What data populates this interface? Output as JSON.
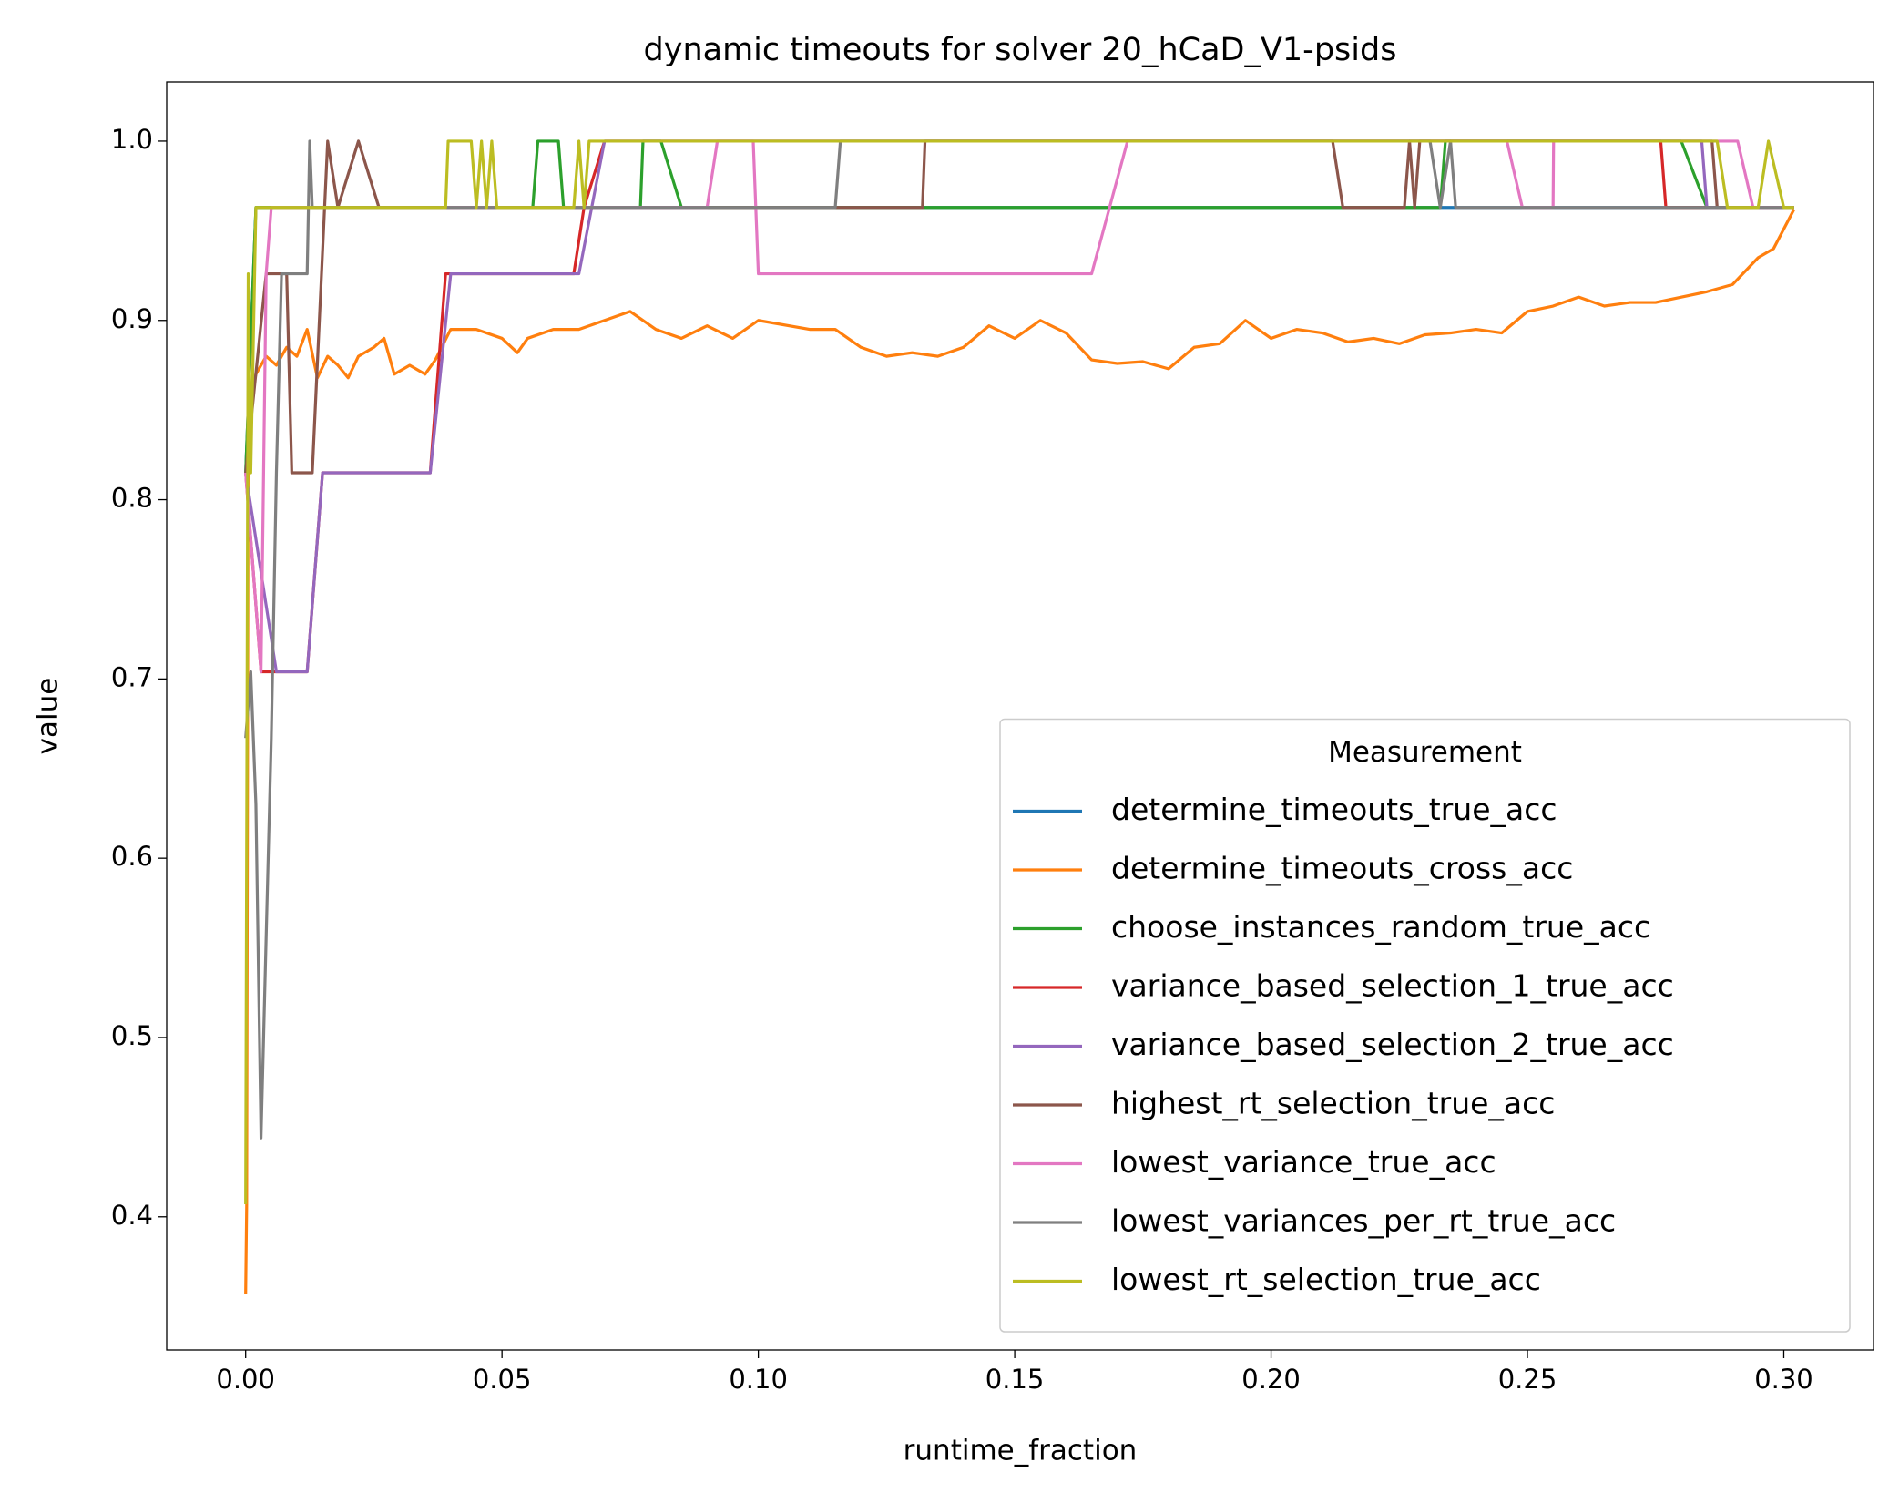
{
  "chart_data": {
    "type": "line",
    "title": "dynamic timeouts for solver 20_hCaD_V1-psids",
    "x_label": "runtime_fraction",
    "y_label": "value",
    "legend_title": "Measurement",
    "legend": "lower right",
    "grid": false,
    "xlim": [
      -0.0154,
      0.3175
    ],
    "ylim": [
      0.3257,
      1.033
    ],
    "xticks": [
      {
        "value": 0,
        "label": "0.00"
      },
      {
        "value": 0.05,
        "label": "0.05"
      },
      {
        "value": 0.1,
        "label": "0.10"
      },
      {
        "value": 0.15,
        "label": "0.15"
      },
      {
        "value": 0.2,
        "label": "0.20"
      },
      {
        "value": 0.25,
        "label": "0.25"
      },
      {
        "value": 0.3,
        "label": "0.30"
      }
    ],
    "yticks": [
      0.4,
      0.5,
      0.6,
      0.7,
      0.8,
      0.9,
      {
        "value": 1,
        "label": "1.0"
      }
    ],
    "series": [
      {
        "name": "determine_timeouts_true_acc",
        "color": "#1f77b4",
        "x": [
          0,
          0.002,
          0.302
        ],
        "values": [
          0.815,
          0.963,
          0.963
        ]
      },
      {
        "name": "determine_timeouts_cross_acc",
        "color": "#ff7f0e",
        "x": [
          0,
          0.0002,
          0.0005,
          0.002,
          0.004,
          0.006,
          0.008,
          0.01,
          0.012,
          0.014,
          0.016,
          0.018,
          0.02,
          0.022,
          0.025,
          0.027,
          0.029,
          0.032,
          0.035,
          0.037,
          0.04,
          0.045,
          0.05,
          0.053,
          0.055,
          0.06,
          0.065,
          0.07,
          0.075,
          0.08,
          0.085,
          0.09,
          0.095,
          0.1,
          0.11,
          0.115,
          0.12,
          0.125,
          0.13,
          0.135,
          0.14,
          0.145,
          0.15,
          0.155,
          0.16,
          0.165,
          0.17,
          0.175,
          0.18,
          0.185,
          0.19,
          0.195,
          0.2,
          0.205,
          0.21,
          0.215,
          0.22,
          0.225,
          0.23,
          0.235,
          0.24,
          0.245,
          0.25,
          0.255,
          0.26,
          0.265,
          0.27,
          0.275,
          0.28,
          0.285,
          0.29,
          0.295,
          0.298,
          0.302
        ],
        "values": [
          0.357,
          0.407,
          0.85,
          0.87,
          0.88,
          0.875,
          0.885,
          0.88,
          0.895,
          0.868,
          0.88,
          0.875,
          0.868,
          0.88,
          0.885,
          0.89,
          0.87,
          0.875,
          0.87,
          0.878,
          0.895,
          0.895,
          0.89,
          0.882,
          0.89,
          0.895,
          0.895,
          0.9,
          0.905,
          0.895,
          0.89,
          0.897,
          0.89,
          0.9,
          0.895,
          0.895,
          0.885,
          0.88,
          0.882,
          0.88,
          0.885,
          0.897,
          0.89,
          0.9,
          0.893,
          0.878,
          0.876,
          0.877,
          0.873,
          0.885,
          0.887,
          0.9,
          0.89,
          0.895,
          0.893,
          0.888,
          0.89,
          0.887,
          0.892,
          0.893,
          0.895,
          0.893,
          0.905,
          0.908,
          0.913,
          0.908,
          0.91,
          0.91,
          0.913,
          0.916,
          0.92,
          0.935,
          0.94,
          0.962
        ]
      },
      {
        "name": "choose_instances_random_true_acc",
        "color": "#2ca02c",
        "x": [
          0,
          0.002,
          0.056,
          0.057,
          0.061,
          0.062,
          0.077,
          0.0775,
          0.081,
          0.085,
          0.233,
          0.234,
          0.28,
          0.285,
          0.302
        ],
        "values": [
          0.815,
          0.963,
          0.963,
          1.0,
          1.0,
          0.963,
          0.963,
          1.0,
          1.0,
          0.963,
          0.963,
          1.0,
          1.0,
          0.963,
          0.963
        ]
      },
      {
        "name": "variance_based_selection_1_true_acc",
        "color": "#d62728",
        "x": [
          0,
          0.003,
          0.012,
          0.015,
          0.036,
          0.039,
          0.064,
          0.066,
          0.07,
          0.276,
          0.277,
          0.302
        ],
        "values": [
          0.815,
          0.704,
          0.704,
          0.815,
          0.815,
          0.926,
          0.926,
          0.963,
          1.0,
          1.0,
          0.963,
          0.963
        ]
      },
      {
        "name": "variance_based_selection_2_true_acc",
        "color": "#9467bd",
        "x": [
          0,
          0.006,
          0.012,
          0.015,
          0.036,
          0.04,
          0.065,
          0.07,
          0.284,
          0.285,
          0.302
        ],
        "values": [
          0.815,
          0.704,
          0.704,
          0.815,
          0.815,
          0.926,
          0.926,
          1.0,
          1.0,
          0.963,
          0.963
        ]
      },
      {
        "name": "highest_rt_selection_true_acc",
        "color": "#8c564b",
        "x": [
          0,
          0.004,
          0.008,
          0.009,
          0.013,
          0.016,
          0.018,
          0.022,
          0.026,
          0.132,
          0.1325,
          0.212,
          0.214,
          0.226,
          0.227,
          0.228,
          0.229,
          0.286,
          0.287,
          0.302
        ],
        "values": [
          0.815,
          0.926,
          0.926,
          0.815,
          0.815,
          1.0,
          0.963,
          1.0,
          0.963,
          0.963,
          1.0,
          1.0,
          0.963,
          0.963,
          1.0,
          0.963,
          1.0,
          1.0,
          0.963,
          0.963
        ]
      },
      {
        "name": "lowest_variance_true_acc",
        "color": "#e377c2",
        "x": [
          0,
          0.003,
          0.004,
          0.005,
          0.09,
          0.092,
          0.099,
          0.1,
          0.165,
          0.172,
          0.246,
          0.249,
          0.255,
          0.2551,
          0.291,
          0.294,
          0.302
        ],
        "values": [
          0.815,
          0.704,
          0.926,
          0.963,
          0.963,
          1.0,
          1.0,
          0.926,
          0.926,
          1.0,
          1.0,
          0.963,
          0.963,
          1.0,
          1.0,
          0.963,
          0.963
        ]
      },
      {
        "name": "lowest_variances_per_rt_true_acc",
        "color": "#7f7f7f",
        "x": [
          0,
          0.001,
          0.002,
          0.003,
          0.004,
          0.005,
          0.006,
          0.007,
          0.012,
          0.0125,
          0.013,
          0.115,
          0.116,
          0.231,
          0.233,
          0.235,
          0.236,
          0.302
        ],
        "values": [
          0.667,
          0.704,
          0.63,
          0.444,
          0.556,
          0.667,
          0.815,
          0.926,
          0.926,
          1.0,
          0.963,
          0.963,
          1.0,
          1.0,
          0.963,
          1.0,
          0.963,
          0.963
        ]
      },
      {
        "name": "lowest_rt_selection_true_acc",
        "color": "#bcbd22",
        "x": [
          0,
          0.0005,
          0.001,
          0.002,
          0.039,
          0.0395,
          0.044,
          0.045,
          0.046,
          0.047,
          0.048,
          0.049,
          0.064,
          0.065,
          0.066,
          0.067,
          0.287,
          0.289,
          0.295,
          0.297,
          0.3,
          0.302
        ],
        "values": [
          0.407,
          0.926,
          0.815,
          0.963,
          0.963,
          1.0,
          1.0,
          0.963,
          1.0,
          0.963,
          1.0,
          0.963,
          0.963,
          1.0,
          0.963,
          1.0,
          1.0,
          0.963,
          0.963,
          1.0,
          0.963,
          0.963
        ]
      }
    ]
  }
}
